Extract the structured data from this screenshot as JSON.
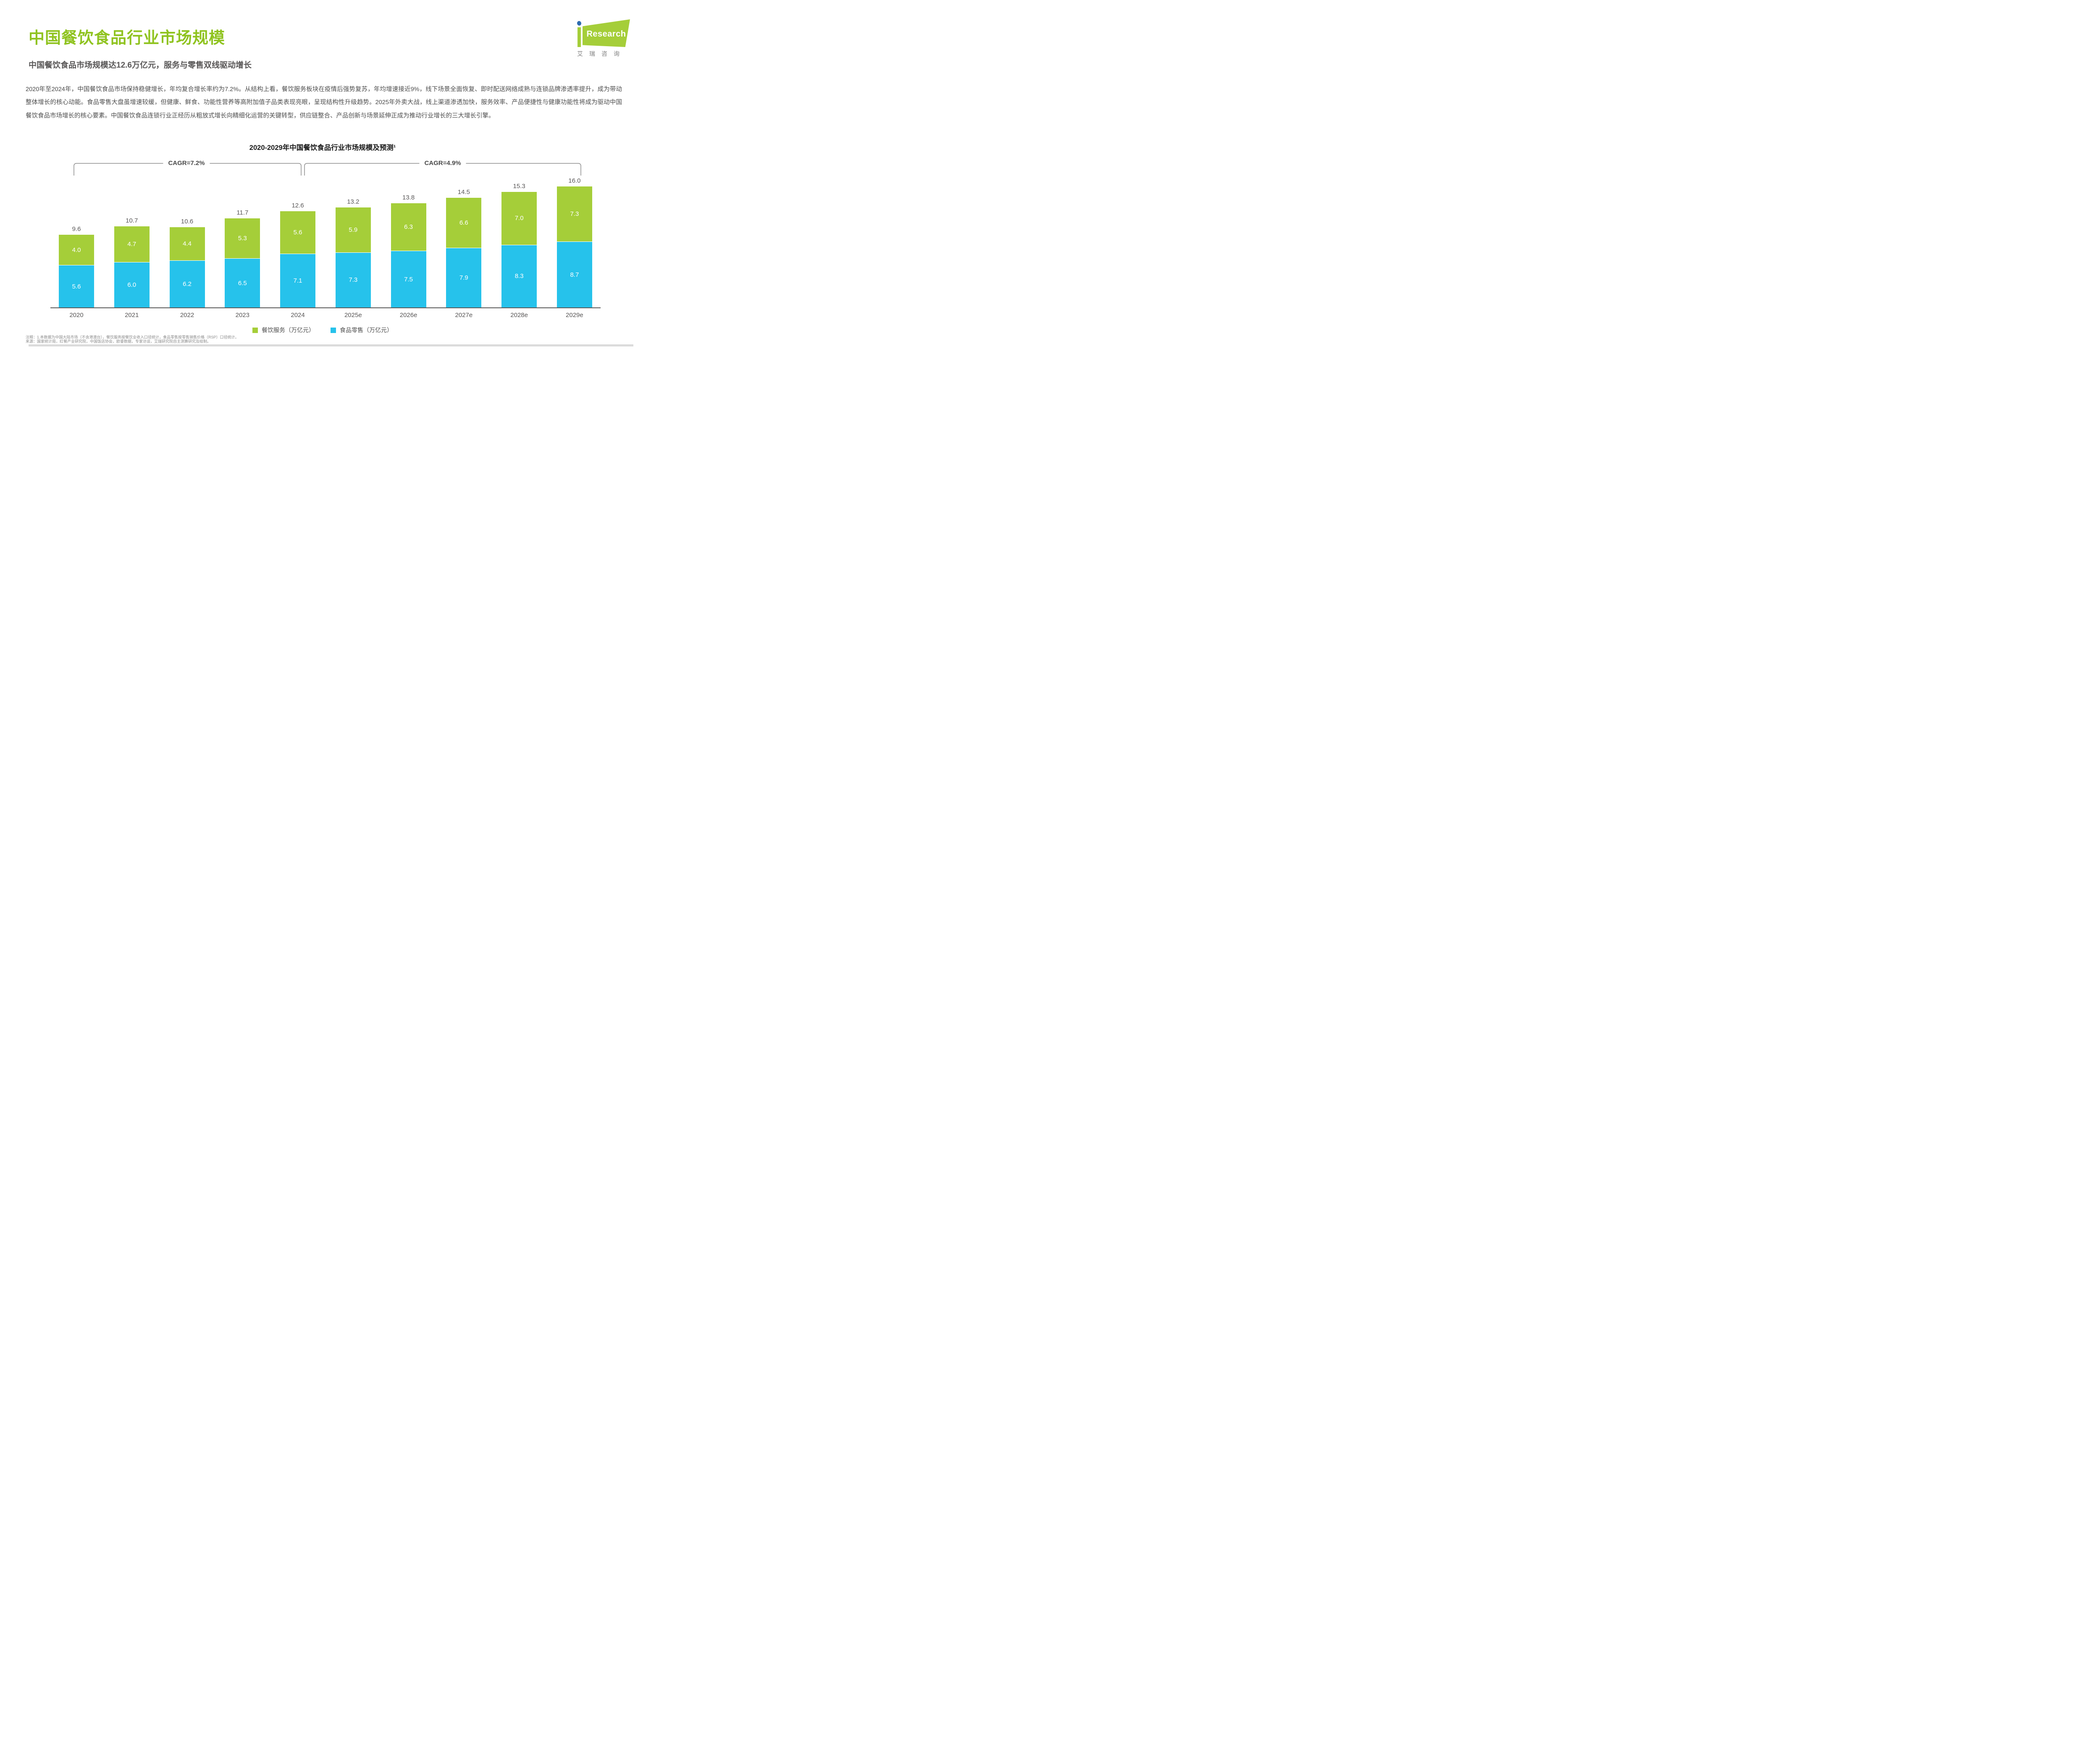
{
  "header": {
    "title": "中国餐饮食品行业市场规模",
    "logo": {
      "research_text": "Research",
      "cn_text": "艾瑞咨询"
    }
  },
  "subtitle": "中国餐饮食品市场规模达12.6万亿元，服务与零售双线驱动增长",
  "paragraph": "2020年至2024年，中国餐饮食品市场保持稳健增长，年均复合增长率约为7.2%。从结构上看，餐饮服务板块在疫情后强势复苏，年均增速接近9%，线下场景全面恢复、即时配送网络成熟与连锁品牌渗透率提升，成为带动整体增长的核心动能。食品零售大盘虽增速较缓，但健康、鲜食、功能性营养等高附加值子品类表现亮眼，呈现结构性升级趋势。2025年外卖大战，线上渠道渗透加快，服务效率、产品便捷性与健康功能性将成为驱动中国餐饮食品市场增长的核心要素。中国餐饮食品连锁行业正经历从粗放式增长向精细化运营的关键转型，供应链整合、产品创新与场景延伸正成为推动行业增长的三大增长引擎。",
  "chart": {
    "title": "2020-2029年中国餐饮食品行业市场规模及预测¹",
    "cagr_left": "CAGR=7.2%",
    "cagr_right": "CAGR=4.9%",
    "legend": [
      {
        "label": "餐饮服务（万亿元）",
        "color": "#A5CE39"
      },
      {
        "label": "食品零售（万亿元）",
        "color": "#26C2EB"
      }
    ]
  },
  "chart_data": {
    "type": "bar",
    "stacked": true,
    "title": "2020-2029年中国餐饮食品行业市场规模及预测¹",
    "ylabel": "万亿元",
    "grid": false,
    "legend_position": "bottom",
    "categories": [
      "2020",
      "2021",
      "2022",
      "2023",
      "2024",
      "2025e",
      "2026e",
      "2027e",
      "2028e",
      "2029e"
    ],
    "series": [
      {
        "name": "食品零售（万亿元）",
        "color": "#26C2EB",
        "values": [
          5.6,
          6.0,
          6.2,
          6.5,
          7.1,
          7.3,
          7.5,
          7.9,
          8.3,
          8.7
        ]
      },
      {
        "name": "餐饮服务（万亿元）",
        "color": "#A5CE39",
        "values": [
          4.0,
          4.7,
          4.4,
          5.3,
          5.6,
          5.9,
          6.3,
          6.6,
          7.0,
          7.3
        ]
      }
    ],
    "totals": [
      9.6,
      10.7,
      10.6,
      11.7,
      12.6,
      13.2,
      13.8,
      14.5,
      15.3,
      16.0
    ],
    "annotations": [
      {
        "label": "CAGR=7.2%",
        "span": [
          "2020",
          "2024"
        ]
      },
      {
        "label": "CAGR=4.9%",
        "span": [
          "2025e",
          "2029e"
        ]
      }
    ]
  },
  "footnotes": {
    "note": "注释：1.本数据为中国大陆市场（不含港澳台），餐饮服务按餐饮业收入口径统计，食品零售按零售销售价格（RSP）口径统计。",
    "source": "来源：国家统计局，红餐产业研究院，中国饭店协会，欧睿数据，专家访谈，艾瑞研究院自主测算研究及绘制。"
  }
}
